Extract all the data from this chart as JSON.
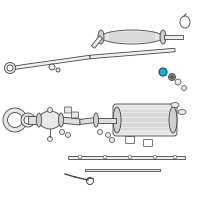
{
  "background_color": "#ffffff",
  "line_color": "#444444",
  "fill_light": "#e8e8e8",
  "fill_mid": "#d0d0d0",
  "highlight_color": "#1ab0cc",
  "fig_width": 2.0,
  "fig_height": 2.0,
  "dpi": 100
}
